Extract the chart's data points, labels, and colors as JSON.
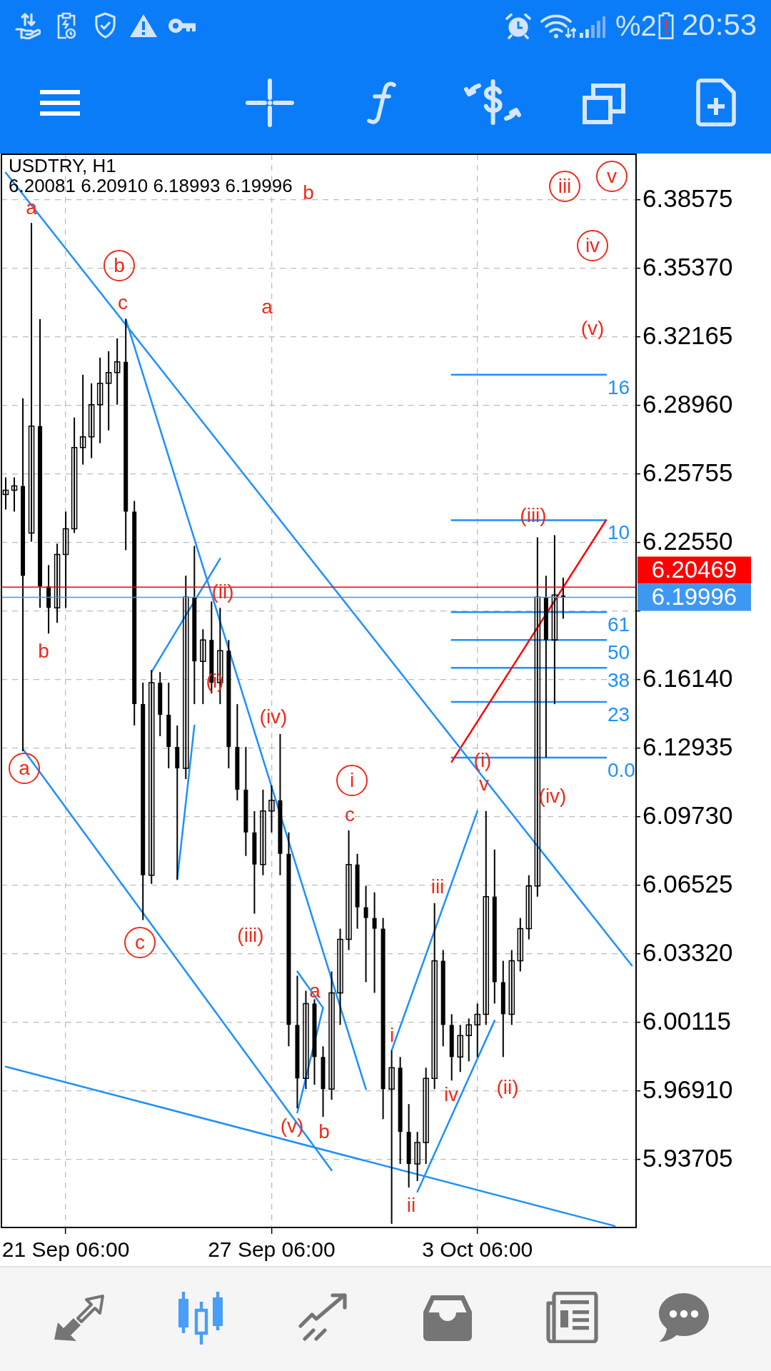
{
  "chart_data": {
    "type": "candlestick",
    "title": "USDTRY, H1",
    "subtitle": "6.20081 6.20910 6.18993 6.19996",
    "color": "#000000",
    "categories": [
      null,
      null,
      null,
      null,
      null,
      null,
      null,
      "21 Sep 06:00",
      null,
      null,
      null,
      null,
      null,
      null,
      null,
      null,
      null,
      null,
      null,
      null,
      null,
      null,
      null,
      null,
      null,
      null,
      null,
      null,
      null,
      null,
      null,
      "27 Sep 06:00",
      null,
      null,
      null,
      null,
      null,
      null,
      null,
      null,
      null,
      null,
      null,
      null,
      null,
      null,
      null,
      null,
      null,
      null,
      null,
      null,
      null,
      null,
      null,
      "3 Oct 06:00",
      null,
      null,
      null,
      null,
      null,
      null,
      null,
      null,
      null,
      null,
      null,
      null,
      null,
      null,
      null,
      null,
      null,
      null
    ],
    "ohlc": [
      [
        6.248,
        6.256,
        6.241,
        6.25
      ],
      [
        6.25,
        6.256,
        6.24,
        6.252
      ],
      [
        6.252,
        6.293,
        6.128,
        6.21
      ],
      [
        6.23,
        6.375,
        6.226,
        6.28
      ],
      [
        6.28,
        6.33,
        6.195,
        6.205
      ],
      [
        6.205,
        6.215,
        6.183,
        6.195
      ],
      [
        6.195,
        6.225,
        6.188,
        6.22
      ],
      [
        6.22,
        6.24,
        6.195,
        6.232
      ],
      [
        6.232,
        6.284,
        6.23,
        6.27
      ],
      [
        6.27,
        6.304,
        6.262,
        6.275
      ],
      [
        6.275,
        6.3,
        6.265,
        6.29
      ],
      [
        6.29,
        6.312,
        6.272,
        6.3
      ],
      [
        6.3,
        6.315,
        6.278,
        6.305
      ],
      [
        6.305,
        6.321,
        6.29,
        6.31
      ],
      [
        6.31,
        6.33,
        6.222,
        6.24
      ],
      [
        6.24,
        6.245,
        6.14,
        6.15
      ],
      [
        6.15,
        6.16,
        6.049,
        6.07
      ],
      [
        6.07,
        6.166,
        6.066,
        6.16
      ],
      [
        6.16,
        6.165,
        6.135,
        6.145
      ],
      [
        6.145,
        6.16,
        6.12,
        6.13
      ],
      [
        6.13,
        6.14,
        6.068,
        6.12
      ],
      [
        6.12,
        6.21,
        6.115,
        6.2
      ],
      [
        6.2,
        6.224,
        6.15,
        6.17
      ],
      [
        6.17,
        6.185,
        6.15,
        6.18
      ],
      [
        6.18,
        6.198,
        6.155,
        6.16
      ],
      [
        6.16,
        6.195,
        6.15,
        6.175
      ],
      [
        6.175,
        6.18,
        6.12,
        6.13
      ],
      [
        6.13,
        6.15,
        6.105,
        6.11
      ],
      [
        6.11,
        6.13,
        6.079,
        6.09
      ],
      [
        6.09,
        6.1,
        6.052,
        6.075
      ],
      [
        6.075,
        6.11,
        6.07,
        6.1
      ],
      [
        6.1,
        6.112,
        6.09,
        6.105
      ],
      [
        6.105,
        6.136,
        6.07,
        6.08
      ],
      [
        6.08,
        6.09,
        5.99,
        6.0
      ],
      [
        6.0,
        6.023,
        5.961,
        5.975
      ],
      [
        5.975,
        6.016,
        5.97,
        6.01
      ],
      [
        6.01,
        6.012,
        5.972,
        5.985
      ],
      [
        5.985,
        5.99,
        5.957,
        5.97
      ],
      [
        5.97,
        6.025,
        5.965,
        6.015
      ],
      [
        6.015,
        6.045,
        6.0,
        6.04
      ],
      [
        6.04,
        6.091,
        6.035,
        6.075
      ],
      [
        6.075,
        6.08,
        6.045,
        6.055
      ],
      [
        6.055,
        6.065,
        6.02,
        6.05
      ],
      [
        6.05,
        6.062,
        6.015,
        6.045
      ],
      [
        6.045,
        6.05,
        5.956,
        5.97
      ],
      [
        5.97,
        5.988,
        5.907,
        5.98
      ],
      [
        5.98,
        5.985,
        5.935,
        5.95
      ],
      [
        5.95,
        5.963,
        5.924,
        5.935
      ],
      [
        5.935,
        5.95,
        5.927,
        5.945
      ],
      [
        5.945,
        5.98,
        5.935,
        5.975
      ],
      [
        5.975,
        6.057,
        5.97,
        6.03
      ],
      [
        6.03,
        6.035,
        5.99,
        6.0
      ],
      [
        6.0,
        6.005,
        5.974,
        5.985
      ],
      [
        5.985,
        6.0,
        5.978,
        5.995
      ],
      [
        5.995,
        6.003,
        5.983,
        6.0
      ],
      [
        6.0,
        6.01,
        5.985,
        6.005
      ],
      [
        6.005,
        6.1,
        6.0,
        6.06
      ],
      [
        6.06,
        6.082,
        6.01,
        6.02
      ],
      [
        6.02,
        6.03,
        5.985,
        6.005
      ],
      [
        6.005,
        6.035,
        6.0,
        6.03
      ],
      [
        6.03,
        6.05,
        6.025,
        6.045
      ],
      [
        6.045,
        6.07,
        6.04,
        6.065
      ],
      [
        6.065,
        6.228,
        6.06,
        6.2
      ],
      [
        6.2,
        6.21,
        6.125,
        6.18
      ],
      [
        6.18,
        6.229,
        6.15,
        6.201
      ],
      [
        6.20081,
        6.2091,
        6.18993,
        6.19996
      ],
      null,
      null,
      null,
      null,
      null,
      null,
      null,
      null
    ],
    "ylim": [
      5.9053,
      6.4071
    ],
    "yticks": [
      5.93705,
      {
        "value": 5.9691,
        "label": "5.96910"
      },
      6.00115,
      {
        "value": 6.0332,
        "label": "6.03320"
      },
      6.06525,
      {
        "value": 6.0973,
        "label": "6.09730"
      },
      6.12935,
      {
        "value": 6.1614,
        "label": "6.16140"
      },
      {
        "value": 6.19345,
        "label": null
      },
      {
        "value": 6.2255,
        "label": "6.22550"
      },
      6.25755,
      {
        "value": 6.2896,
        "label": "6.28960"
      },
      6.32165,
      {
        "value": 6.3537,
        "label": "6.35370"
      },
      6.38575
    ],
    "grid": true,
    "series": [
      {
        "type": "line",
        "color": "#1e90ff",
        "values": [
          6.3985,
          null,
          null,
          null,
          null,
          null,
          null,
          null,
          null,
          null,
          null,
          null,
          null,
          null,
          null,
          null,
          null,
          null,
          null,
          null,
          null,
          null,
          null,
          null,
          null,
          null,
          null,
          null,
          null,
          null,
          null,
          null,
          null,
          null,
          null,
          null,
          null,
          null,
          null,
          null,
          null,
          null,
          null,
          null,
          null,
          null,
          null,
          null,
          null,
          null,
          null,
          null,
          null,
          null,
          null,
          null,
          null,
          null,
          null,
          null,
          null,
          null,
          null,
          null,
          null,
          null,
          null,
          null,
          null,
          null,
          null,
          null,
          null,
          6.0278
        ]
      },
      {
        "type": "line",
        "color": "#1e90ff",
        "values": [
          null,
          null,
          null,
          null,
          null,
          null,
          null,
          null,
          null,
          null,
          null,
          null,
          null,
          null,
          6.33,
          null,
          null,
          null,
          null,
          null,
          null,
          null,
          null,
          null,
          null,
          null,
          null,
          null,
          null,
          null,
          null,
          null,
          null,
          null,
          null,
          null,
          null,
          null,
          null,
          null,
          null,
          null,
          5.97,
          null,
          null,
          null,
          null,
          null,
          null,
          null,
          null,
          null,
          null,
          null,
          null,
          null,
          null,
          null,
          null,
          null,
          null,
          null,
          null,
          null,
          null,
          null,
          null,
          null,
          null,
          null,
          null,
          null,
          null,
          null
        ]
      },
      {
        "type": "line",
        "color": "#1e90ff",
        "values": [
          null,
          null,
          6.129,
          null,
          null,
          null,
          null,
          null,
          null,
          null,
          null,
          null,
          null,
          null,
          null,
          null,
          null,
          null,
          null,
          null,
          null,
          null,
          null,
          null,
          null,
          null,
          null,
          null,
          null,
          null,
          null,
          null,
          null,
          null,
          null,
          null,
          null,
          null,
          5.932,
          null,
          null,
          null,
          null,
          null,
          null,
          null,
          null,
          null,
          null,
          null,
          null,
          null,
          null,
          null,
          null,
          null,
          null,
          null,
          null,
          null,
          null,
          null,
          null,
          null,
          null,
          null,
          null,
          null,
          null,
          null,
          null,
          null,
          null,
          null
        ]
      },
      {
        "type": "line",
        "color": "#1e90ff",
        "values": [
          5.9805,
          null,
          null,
          null,
          null,
          null,
          null,
          null,
          null,
          null,
          null,
          null,
          null,
          null,
          null,
          null,
          null,
          null,
          null,
          null,
          null,
          null,
          null,
          null,
          null,
          null,
          null,
          null,
          null,
          null,
          null,
          null,
          null,
          null,
          null,
          null,
          null,
          null,
          null,
          null,
          null,
          null,
          null,
          null,
          null,
          null,
          null,
          null,
          null,
          null,
          null,
          null,
          null,
          null,
          null,
          null,
          null,
          null,
          null,
          null,
          null,
          null,
          null,
          null,
          null,
          null,
          null,
          null,
          null,
          null,
          null,
          5.906,
          null,
          null
        ]
      },
      {
        "type": "line",
        "color": "#1e90ff",
        "values": [
          null,
          null,
          null,
          null,
          null,
          null,
          null,
          null,
          null,
          null,
          null,
          null,
          null,
          null,
          null,
          null,
          null,
          6.165,
          null,
          null,
          null,
          null,
          null,
          null,
          null,
          6.218,
          null,
          null,
          null,
          null,
          null,
          null,
          null,
          null,
          null,
          null,
          null,
          null,
          null,
          null,
          null,
          null,
          null,
          null,
          null,
          null,
          null,
          null,
          null,
          null,
          null,
          null,
          null,
          null,
          null,
          null,
          null,
          null,
          null,
          null,
          null,
          null,
          null,
          null,
          null,
          null,
          null,
          null,
          null,
          null,
          null,
          null,
          null,
          null
        ]
      },
      {
        "type": "line",
        "color": "#1e90ff",
        "values": [
          null,
          null,
          null,
          null,
          null,
          null,
          null,
          null,
          null,
          null,
          null,
          null,
          null,
          null,
          null,
          null,
          null,
          null,
          null,
          null,
          6.068,
          null,
          6.14,
          null,
          null,
          null,
          null,
          null,
          null,
          null,
          null,
          null,
          null,
          null,
          null,
          null,
          null,
          null,
          null,
          null,
          null,
          null,
          null,
          null,
          null,
          null,
          null,
          null,
          null,
          null,
          null,
          null,
          null,
          null,
          null,
          null,
          null,
          null,
          null,
          null,
          null,
          null,
          null,
          null,
          null,
          null,
          null,
          null,
          null,
          null,
          null,
          null,
          null,
          null
        ]
      },
      {
        "type": "line",
        "color": "#1e90ff",
        "values": [
          null,
          null,
          null,
          null,
          null,
          null,
          null,
          null,
          null,
          null,
          null,
          null,
          null,
          null,
          null,
          null,
          null,
          null,
          null,
          null,
          null,
          null,
          null,
          null,
          null,
          null,
          null,
          null,
          null,
          null,
          null,
          null,
          null,
          null,
          6.025,
          null,
          null,
          6.008,
          null,
          null,
          null,
          null,
          null,
          null,
          null,
          null,
          null,
          null,
          null,
          null,
          null,
          null,
          null,
          null,
          null,
          null,
          null,
          null,
          null,
          null,
          null,
          null,
          null,
          null,
          null,
          null,
          null,
          null,
          null,
          null,
          null,
          null,
          null,
          null
        ]
      },
      {
        "type": "line",
        "color": "#1e90ff",
        "values": [
          null,
          null,
          null,
          null,
          null,
          null,
          null,
          null,
          null,
          null,
          null,
          null,
          null,
          null,
          null,
          null,
          null,
          null,
          null,
          null,
          null,
          null,
          null,
          null,
          null,
          null,
          null,
          null,
          null,
          null,
          null,
          null,
          null,
          null,
          5.959,
          null,
          null,
          6.008,
          null,
          null,
          null,
          null,
          null,
          null,
          null,
          null,
          null,
          null,
          null,
          null,
          null,
          null,
          null,
          null,
          null,
          null,
          null,
          null,
          null,
          null,
          null,
          null,
          null,
          null,
          null,
          null,
          null,
          null,
          null,
          null,
          null,
          null,
          null,
          null
        ]
      },
      {
        "type": "line",
        "color": "#1e90ff",
        "values": [
          null,
          null,
          null,
          null,
          null,
          null,
          null,
          null,
          null,
          null,
          null,
          null,
          null,
          null,
          null,
          null,
          null,
          null,
          null,
          null,
          null,
          null,
          null,
          null,
          null,
          null,
          null,
          null,
          null,
          null,
          null,
          null,
          null,
          null,
          null,
          null,
          null,
          null,
          null,
          null,
          null,
          null,
          null,
          null,
          null,
          5.988,
          null,
          null,
          null,
          null,
          null,
          null,
          null,
          null,
          null,
          6.1,
          null,
          null,
          null,
          null,
          null,
          null,
          null,
          null,
          null,
          null,
          null,
          null,
          null,
          null,
          null,
          null,
          null,
          null
        ]
      },
      {
        "type": "line",
        "color": "#1e90ff",
        "values": [
          null,
          null,
          null,
          null,
          null,
          null,
          null,
          null,
          null,
          null,
          null,
          null,
          null,
          null,
          null,
          null,
          null,
          null,
          null,
          null,
          null,
          null,
          null,
          null,
          null,
          null,
          null,
          null,
          null,
          null,
          null,
          null,
          null,
          null,
          null,
          null,
          null,
          null,
          null,
          null,
          null,
          null,
          null,
          null,
          null,
          null,
          null,
          null,
          5.922,
          null,
          null,
          null,
          null,
          null,
          null,
          null,
          null,
          6.002,
          null,
          null,
          null,
          null,
          null,
          null,
          null,
          null,
          null,
          null,
          null,
          null,
          null,
          null,
          null,
          null
        ]
      },
      {
        "type": "line",
        "color": "#ff0000",
        "values": [
          null,
          null,
          null,
          null,
          null,
          null,
          null,
          null,
          null,
          null,
          null,
          null,
          null,
          null,
          null,
          null,
          null,
          null,
          null,
          null,
          null,
          null,
          null,
          null,
          null,
          null,
          null,
          null,
          null,
          null,
          null,
          null,
          null,
          null,
          null,
          null,
          null,
          null,
          null,
          null,
          null,
          null,
          null,
          null,
          null,
          null,
          null,
          null,
          null,
          null,
          null,
          null,
          6.123,
          null,
          null,
          null,
          null,
          null,
          null,
          null,
          null,
          null,
          null,
          null,
          null,
          null,
          null,
          null,
          null,
          null,
          6.236,
          null,
          null,
          null
        ]
      },
      {
        "type": "line",
        "name": "16",
        "color": "#1e90ff",
        "values": [
          null,
          null,
          null,
          null,
          null,
          null,
          null,
          null,
          null,
          null,
          null,
          null,
          null,
          null,
          null,
          null,
          null,
          null,
          null,
          null,
          null,
          null,
          null,
          null,
          null,
          null,
          null,
          null,
          null,
          null,
          null,
          null,
          null,
          null,
          null,
          null,
          null,
          null,
          null,
          null,
          null,
          null,
          null,
          null,
          null,
          null,
          null,
          null,
          null,
          null,
          null,
          null,
          6.304,
          null,
          null,
          null,
          null,
          null,
          null,
          null,
          null,
          null,
          null,
          null,
          null,
          null,
          null,
          null,
          null,
          null,
          6.304,
          null,
          null,
          null
        ]
      },
      {
        "type": "line",
        "name": "10",
        "color": "#1e90ff",
        "values": [
          null,
          null,
          null,
          null,
          null,
          null,
          null,
          null,
          null,
          null,
          null,
          null,
          null,
          null,
          null,
          null,
          null,
          null,
          null,
          null,
          null,
          null,
          null,
          null,
          null,
          null,
          null,
          null,
          null,
          null,
          null,
          null,
          null,
          null,
          null,
          null,
          null,
          null,
          null,
          null,
          null,
          null,
          null,
          null,
          null,
          null,
          null,
          null,
          null,
          null,
          null,
          null,
          6.236,
          null,
          null,
          null,
          null,
          null,
          null,
          null,
          null,
          null,
          null,
          null,
          null,
          null,
          null,
          null,
          null,
          null,
          6.236,
          null,
          null,
          null
        ]
      },
      {
        "type": "line",
        "name": "61",
        "color": "#1e90ff",
        "values": [
          null,
          null,
          null,
          null,
          null,
          null,
          null,
          null,
          null,
          null,
          null,
          null,
          null,
          null,
          null,
          null,
          null,
          null,
          null,
          null,
          null,
          null,
          null,
          null,
          null,
          null,
          null,
          null,
          null,
          null,
          null,
          null,
          null,
          null,
          null,
          null,
          null,
          null,
          null,
          null,
          null,
          null,
          null,
          null,
          null,
          null,
          null,
          null,
          null,
          null,
          null,
          null,
          6.193,
          null,
          null,
          null,
          null,
          null,
          null,
          null,
          null,
          null,
          null,
          null,
          null,
          null,
          null,
          null,
          null,
          null,
          6.193,
          null,
          null,
          null
        ]
      },
      {
        "type": "line",
        "name": "50",
        "color": "#1e90ff",
        "values": [
          null,
          null,
          null,
          null,
          null,
          null,
          null,
          null,
          null,
          null,
          null,
          null,
          null,
          null,
          null,
          null,
          null,
          null,
          null,
          null,
          null,
          null,
          null,
          null,
          null,
          null,
          null,
          null,
          null,
          null,
          null,
          null,
          null,
          null,
          null,
          null,
          null,
          null,
          null,
          null,
          null,
          null,
          null,
          null,
          null,
          null,
          null,
          null,
          null,
          null,
          null,
          null,
          6.18,
          null,
          null,
          null,
          null,
          null,
          null,
          null,
          null,
          null,
          null,
          null,
          null,
          null,
          null,
          null,
          null,
          null,
          6.18,
          null,
          null,
          null
        ]
      },
      {
        "type": "line",
        "name": "38",
        "color": "#1e90ff",
        "values": [
          null,
          null,
          null,
          null,
          null,
          null,
          null,
          null,
          null,
          null,
          null,
          null,
          null,
          null,
          null,
          null,
          null,
          null,
          null,
          null,
          null,
          null,
          null,
          null,
          null,
          null,
          null,
          null,
          null,
          null,
          null,
          null,
          null,
          null,
          null,
          null,
          null,
          null,
          null,
          null,
          null,
          null,
          null,
          null,
          null,
          null,
          null,
          null,
          null,
          null,
          null,
          null,
          6.167,
          null,
          null,
          null,
          null,
          null,
          null,
          null,
          null,
          null,
          null,
          null,
          null,
          null,
          null,
          null,
          null,
          null,
          6.167,
          null,
          null,
          null
        ]
      },
      {
        "type": "line",
        "name": "23",
        "color": "#1e90ff",
        "values": [
          null,
          null,
          null,
          null,
          null,
          null,
          null,
          null,
          null,
          null,
          null,
          null,
          null,
          null,
          null,
          null,
          null,
          null,
          null,
          null,
          null,
          null,
          null,
          null,
          null,
          null,
          null,
          null,
          null,
          null,
          null,
          null,
          null,
          null,
          null,
          null,
          null,
          null,
          null,
          null,
          null,
          null,
          null,
          null,
          null,
          null,
          null,
          null,
          null,
          null,
          null,
          null,
          6.151,
          null,
          null,
          null,
          null,
          null,
          null,
          null,
          null,
          null,
          null,
          null,
          null,
          null,
          null,
          null,
          null,
          null,
          6.151,
          null,
          null,
          null
        ]
      },
      {
        "type": "line",
        "name": "0.0",
        "color": "#1e90ff",
        "values": [
          null,
          null,
          null,
          null,
          null,
          null,
          null,
          null,
          null,
          null,
          null,
          null,
          null,
          null,
          null,
          null,
          null,
          null,
          null,
          null,
          null,
          null,
          null,
          null,
          null,
          null,
          null,
          null,
          null,
          null,
          null,
          null,
          null,
          null,
          null,
          null,
          null,
          null,
          null,
          null,
          null,
          null,
          null,
          null,
          null,
          null,
          null,
          null,
          null,
          null,
          null,
          null,
          6.125,
          null,
          null,
          null,
          null,
          null,
          null,
          null,
          null,
          null,
          null,
          null,
          null,
          null,
          null,
          null,
          null,
          null,
          6.125,
          null,
          null,
          null
        ]
      }
    ],
    "ref_lines": [
      {
        "axis": "y",
        "value": 6.20469,
        "label": "6.20469",
        "color": "#ff0000"
      },
      {
        "axis": "y",
        "value": 6.19996,
        "label": "6.19996",
        "color": "#3d98f2"
      }
    ],
    "annotations": [
      "a",
      "b",
      "b",
      "c",
      "a",
      "b",
      "(ii)",
      "(i)",
      "(iv)",
      "a",
      "c",
      "(iii)",
      "i",
      "c",
      "a",
      "(v)",
      "b",
      "iii",
      "v",
      "iv",
      "(v)",
      "(iii)",
      "(i)",
      "v",
      "(iv)",
      "iii",
      "i",
      "iv",
      "(ii)",
      "ii",
      "%2",
      "20:53"
    ]
  }
}
